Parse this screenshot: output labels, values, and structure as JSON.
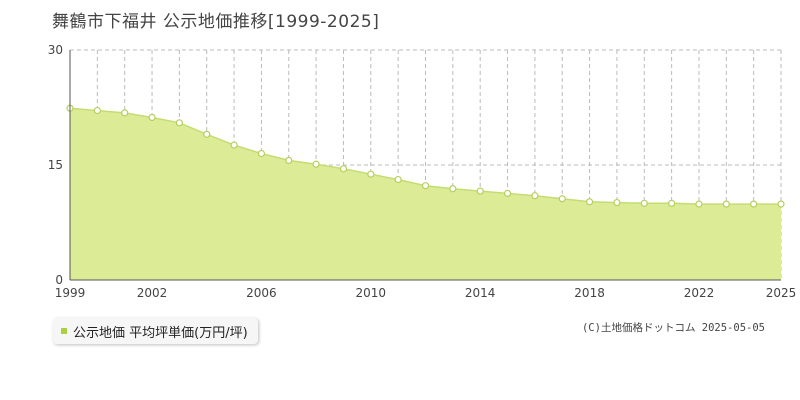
{
  "title": "舞鶴市下福井 公示地価推移[1999-2025]",
  "legend": {
    "label": "公示地価 平均坪単価(万円/坪)"
  },
  "copyright": "(C)土地価格ドットコム 2025-05-05",
  "colors": {
    "fill": "#dcec96",
    "line": "#c4dd72",
    "marker_stroke": "#b5cf5c",
    "grid": "#bbbbbb",
    "legend_swatch": "#a8d040"
  },
  "chart_data": {
    "type": "area",
    "x": [
      1999,
      2000,
      2001,
      2002,
      2003,
      2004,
      2005,
      2006,
      2007,
      2008,
      2009,
      2010,
      2011,
      2012,
      2013,
      2014,
      2015,
      2016,
      2017,
      2018,
      2019,
      2020,
      2021,
      2022,
      2023,
      2024,
      2025
    ],
    "values": [
      22.4,
      22.1,
      21.8,
      21.2,
      20.5,
      19.0,
      17.6,
      16.5,
      15.6,
      15.1,
      14.5,
      13.8,
      13.1,
      12.3,
      11.9,
      11.6,
      11.3,
      11.0,
      10.6,
      10.2,
      10.1,
      10.0,
      10.0,
      9.9,
      9.9,
      9.9,
      9.9
    ],
    "ylim": [
      0,
      30
    ],
    "yticks": [
      0,
      15,
      30
    ],
    "xtick_labels": [
      1999,
      2002,
      2006,
      2010,
      2014,
      2018,
      2022,
      2025
    ],
    "grid": true
  }
}
